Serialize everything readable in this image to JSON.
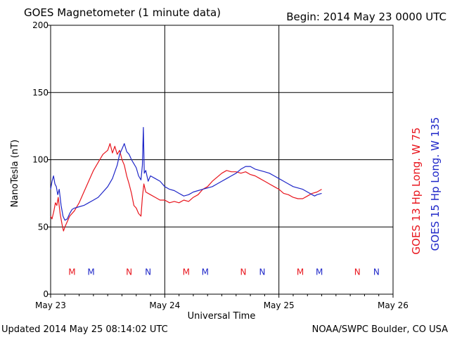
{
  "header": {
    "title": "GOES Magnetometer (1 minute data)",
    "begin": "Begin:  2014 May 23 0000 UTC"
  },
  "footer": {
    "updated": "Updated 2014 May 25 08:14:02 UTC",
    "source": "NOAA/SWPC Boulder, CO USA"
  },
  "colors": {
    "goes13": "#e8141c",
    "goes15": "#1e26c8",
    "axis": "#000000",
    "background": "#ffffff"
  },
  "chart_data": {
    "type": "line",
    "title": "GOES Magnetometer (1 minute data)",
    "xlabel": "Universal Time",
    "ylabel": "NanoTesla (nT)",
    "xlim_hours": [
      0,
      72
    ],
    "ylim": [
      0,
      200
    ],
    "yticks": [
      0,
      50,
      100,
      150,
      200
    ],
    "y_tick_labels": [
      "0",
      "50",
      "100",
      "150",
      "200"
    ],
    "xticks_hours": [
      0,
      24,
      48,
      72
    ],
    "x_tick_labels": [
      "May 23",
      "May 24",
      "May 25",
      "May 26"
    ],
    "grid": true,
    "legend_position": "right (vertical)",
    "series": [
      {
        "name": "GOES 13 Hp  Long. W 75",
        "color": "#e8141c",
        "points": [
          [
            0,
            58
          ],
          [
            0.3,
            56
          ],
          [
            0.7,
            62
          ],
          [
            1.0,
            68
          ],
          [
            1.3,
            66
          ],
          [
            1.6,
            72
          ],
          [
            2.0,
            60
          ],
          [
            2.4,
            52
          ],
          [
            2.7,
            47
          ],
          [
            3.0,
            50
          ],
          [
            3.5,
            54
          ],
          [
            4.0,
            58
          ],
          [
            5.0,
            62
          ],
          [
            6.0,
            68
          ],
          [
            7.0,
            76
          ],
          [
            8.0,
            84
          ],
          [
            9.0,
            92
          ],
          [
            10.0,
            98
          ],
          [
            11.0,
            104
          ],
          [
            12.0,
            107
          ],
          [
            12.5,
            112
          ],
          [
            13.0,
            105
          ],
          [
            13.5,
            110
          ],
          [
            14.0,
            104
          ],
          [
            14.5,
            107
          ],
          [
            15.0,
            100
          ],
          [
            15.5,
            96
          ],
          [
            16.0,
            88
          ],
          [
            16.5,
            82
          ],
          [
            17.0,
            75
          ],
          [
            17.5,
            66
          ],
          [
            18.0,
            64
          ],
          [
            18.5,
            60
          ],
          [
            19.0,
            58
          ],
          [
            19.3,
            72
          ],
          [
            19.6,
            82
          ],
          [
            20.0,
            76
          ],
          [
            21.0,
            74
          ],
          [
            22.0,
            72
          ],
          [
            23.0,
            70
          ],
          [
            24.0,
            70
          ],
          [
            25.0,
            68
          ],
          [
            26.0,
            69
          ],
          [
            27.0,
            68
          ],
          [
            28.0,
            70
          ],
          [
            29.0,
            69
          ],
          [
            30.0,
            72
          ],
          [
            31.0,
            74
          ],
          [
            32.0,
            78
          ],
          [
            33.0,
            80
          ],
          [
            34.0,
            84
          ],
          [
            35.0,
            87
          ],
          [
            36.0,
            90
          ],
          [
            37.0,
            92
          ],
          [
            38.0,
            91
          ],
          [
            39.0,
            91
          ],
          [
            40.0,
            90
          ],
          [
            41.0,
            91
          ],
          [
            42.0,
            89
          ],
          [
            43.0,
            88
          ],
          [
            44.0,
            86
          ],
          [
            45.0,
            84
          ],
          [
            46.0,
            82
          ],
          [
            47.0,
            80
          ],
          [
            48.0,
            78
          ],
          [
            49.0,
            75
          ],
          [
            50.0,
            74
          ],
          [
            51.0,
            72
          ],
          [
            52.0,
            71
          ],
          [
            53.0,
            71
          ],
          [
            54.0,
            73
          ],
          [
            55.0,
            75
          ],
          [
            56.0,
            76
          ],
          [
            57.0,
            78
          ]
        ]
      },
      {
        "name": "GOES 15 Hp  Long. W 135",
        "color": "#1e26c8",
        "points": [
          [
            0,
            78
          ],
          [
            0.3,
            84
          ],
          [
            0.6,
            88
          ],
          [
            0.9,
            82
          ],
          [
            1.2,
            80
          ],
          [
            1.5,
            74
          ],
          [
            1.8,
            78
          ],
          [
            2.2,
            66
          ],
          [
            2.6,
            58
          ],
          [
            3.0,
            55
          ],
          [
            3.5,
            56
          ],
          [
            4.0,
            60
          ],
          [
            4.5,
            63
          ],
          [
            5.0,
            64
          ],
          [
            6.0,
            65
          ],
          [
            7.0,
            66
          ],
          [
            8.0,
            68
          ],
          [
            9.0,
            70
          ],
          [
            10.0,
            72
          ],
          [
            11.0,
            76
          ],
          [
            12.0,
            80
          ],
          [
            13.0,
            86
          ],
          [
            14.0,
            96
          ],
          [
            14.5,
            104
          ],
          [
            15.0,
            108
          ],
          [
            15.5,
            112
          ],
          [
            16.0,
            106
          ],
          [
            16.5,
            104
          ],
          [
            17.0,
            100
          ],
          [
            17.5,
            97
          ],
          [
            18.0,
            94
          ],
          [
            18.5,
            88
          ],
          [
            19.0,
            85
          ],
          [
            19.3,
            96
          ],
          [
            19.5,
            124
          ],
          [
            19.7,
            90
          ],
          [
            20.0,
            92
          ],
          [
            20.5,
            84
          ],
          [
            21.0,
            88
          ],
          [
            22.0,
            86
          ],
          [
            23.0,
            84
          ],
          [
            24.0,
            80
          ],
          [
            25.0,
            78
          ],
          [
            26.0,
            77
          ],
          [
            27.0,
            75
          ],
          [
            28.0,
            73
          ],
          [
            29.0,
            74
          ],
          [
            30.0,
            76
          ],
          [
            31.0,
            77
          ],
          [
            32.0,
            78
          ],
          [
            33.0,
            79
          ],
          [
            34.0,
            80
          ],
          [
            35.0,
            82
          ],
          [
            36.0,
            84
          ],
          [
            37.0,
            86
          ],
          [
            38.0,
            88
          ],
          [
            39.0,
            90
          ],
          [
            40.0,
            93
          ],
          [
            41.0,
            95
          ],
          [
            42.0,
            95
          ],
          [
            43.0,
            93
          ],
          [
            44.0,
            92
          ],
          [
            45.0,
            91
          ],
          [
            46.0,
            90
          ],
          [
            47.0,
            88
          ],
          [
            48.0,
            86
          ],
          [
            49.0,
            84
          ],
          [
            50.0,
            82
          ],
          [
            51.0,
            80
          ],
          [
            52.0,
            79
          ],
          [
            53.0,
            78
          ],
          [
            54.0,
            76
          ],
          [
            55.0,
            74
          ],
          [
            55.5,
            73
          ],
          [
            56.0,
            74
          ],
          [
            57.0,
            75
          ]
        ]
      }
    ],
    "midnight_noon_markers": [
      {
        "hour": 4.5,
        "letter": "M",
        "color": "#e8141c"
      },
      {
        "hour": 8.5,
        "letter": "M",
        "color": "#1e26c8"
      },
      {
        "hour": 16.5,
        "letter": "N",
        "color": "#e8141c"
      },
      {
        "hour": 20.5,
        "letter": "N",
        "color": "#1e26c8"
      },
      {
        "hour": 28.5,
        "letter": "M",
        "color": "#e8141c"
      },
      {
        "hour": 32.5,
        "letter": "M",
        "color": "#1e26c8"
      },
      {
        "hour": 40.5,
        "letter": "N",
        "color": "#e8141c"
      },
      {
        "hour": 44.5,
        "letter": "N",
        "color": "#1e26c8"
      },
      {
        "hour": 52.5,
        "letter": "M",
        "color": "#e8141c"
      },
      {
        "hour": 56.5,
        "letter": "M",
        "color": "#1e26c8"
      },
      {
        "hour": 64.5,
        "letter": "N",
        "color": "#e8141c"
      },
      {
        "hour": 68.5,
        "letter": "N",
        "color": "#1e26c8"
      }
    ],
    "marker_level": 17
  }
}
